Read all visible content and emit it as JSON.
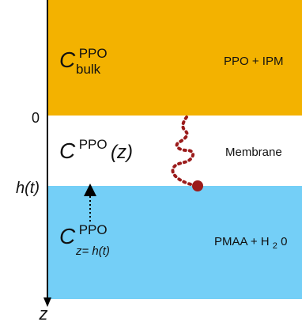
{
  "colors": {
    "top_layer": "#F3B200",
    "middle_layer": "#FFFFFF",
    "bottom_layer": "#74CFF7",
    "polymer_chain": "#9B1B1B",
    "axis": "#000000"
  },
  "layers": {
    "top": {
      "symbol": "C",
      "superscript": "PPO",
      "subscript": "bulk",
      "label": "PPO + IPM"
    },
    "middle": {
      "symbol": "C",
      "superscript": "PPO",
      "argument": "(z)",
      "label": "Membrane"
    },
    "bottom": {
      "symbol": "C",
      "superscript": "PPO",
      "subscript": "z= h(t)",
      "label_main": "PMAA + H",
      "label_sub": "2",
      "label_tail": "0"
    }
  },
  "axis": {
    "zero_label": "0",
    "interface_label": "h(t)",
    "axis_label": "z"
  }
}
